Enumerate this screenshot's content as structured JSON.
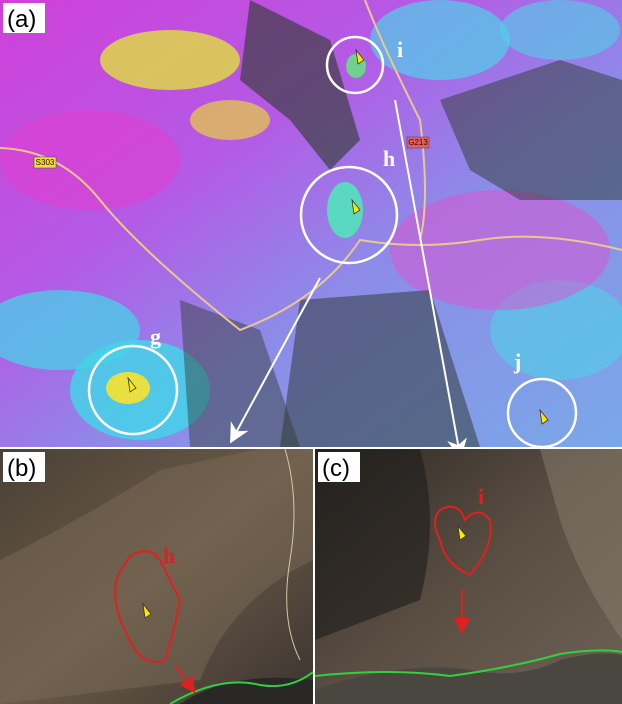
{
  "panels": [
    {
      "label": "(a)",
      "sites": [
        {
          "label": "i"
        },
        {
          "label": "h"
        },
        {
          "label": "g"
        },
        {
          "label": "j"
        }
      ],
      "roads": [
        "S303",
        "G213"
      ]
    },
    {
      "label": "(b)",
      "sites": [
        {
          "label": "h"
        }
      ]
    },
    {
      "label": "(c)",
      "sites": [
        {
          "label": "i"
        }
      ]
    }
  ]
}
